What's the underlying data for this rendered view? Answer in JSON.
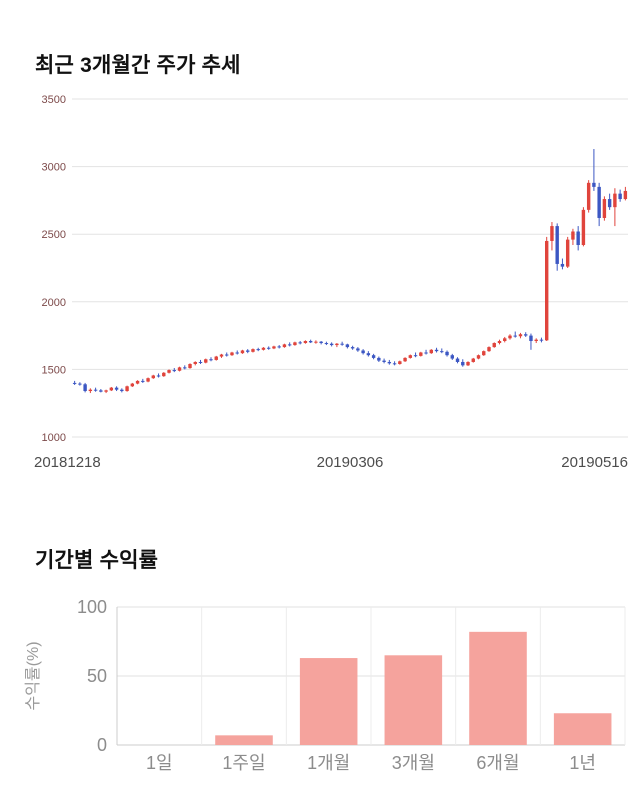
{
  "page": {
    "price_chart_title": "최근 3개월간 주가 추세",
    "return_chart_title": "기간별 수익률"
  },
  "chart_data": [
    {
      "type": "candlestick",
      "title": "최근 3개월간 주가 추세",
      "ylim": [
        1000,
        3500
      ],
      "yticks": [
        3500,
        3000,
        2500,
        2000,
        1500,
        1000
      ],
      "xtick_labels": [
        "20181218",
        "20190306",
        "20190516"
      ],
      "legend": "none",
      "grid": true,
      "colors": {
        "up": "#e0443c",
        "down": "#3c57c3",
        "grid": "#e3e3e3",
        "ytick_label": "#7d4a4a",
        "xtick_label": "#4d4d4d"
      },
      "candles_ohlc": [
        [
          1400,
          1415,
          1385,
          1395
        ],
        [
          1395,
          1405,
          1380,
          1390
        ],
        [
          1390,
          1400,
          1330,
          1340
        ],
        [
          1340,
          1360,
          1325,
          1350
        ],
        [
          1350,
          1365,
          1335,
          1345
        ],
        [
          1345,
          1355,
          1330,
          1335
        ],
        [
          1335,
          1350,
          1325,
          1345
        ],
        [
          1345,
          1370,
          1340,
          1365
        ],
        [
          1365,
          1375,
          1340,
          1350
        ],
        [
          1350,
          1360,
          1330,
          1340
        ],
        [
          1340,
          1380,
          1335,
          1375
        ],
        [
          1375,
          1400,
          1370,
          1395
        ],
        [
          1395,
          1420,
          1390,
          1415
        ],
        [
          1415,
          1430,
          1400,
          1410
        ],
        [
          1410,
          1440,
          1405,
          1435
        ],
        [
          1435,
          1460,
          1430,
          1455
        ],
        [
          1455,
          1470,
          1440,
          1450
        ],
        [
          1450,
          1480,
          1445,
          1475
        ],
        [
          1475,
          1500,
          1470,
          1495
        ],
        [
          1495,
          1510,
          1480,
          1490
        ],
        [
          1490,
          1520,
          1485,
          1515
        ],
        [
          1515,
          1530,
          1500,
          1510
        ],
        [
          1510,
          1545,
          1505,
          1540
        ],
        [
          1540,
          1560,
          1530,
          1555
        ],
        [
          1555,
          1570,
          1540,
          1550
        ],
        [
          1550,
          1580,
          1545,
          1575
        ],
        [
          1575,
          1590,
          1560,
          1570
        ],
        [
          1570,
          1600,
          1565,
          1595
        ],
        [
          1595,
          1615,
          1585,
          1610
        ],
        [
          1610,
          1625,
          1595,
          1605
        ],
        [
          1605,
          1630,
          1600,
          1625
        ],
        [
          1625,
          1640,
          1610,
          1620
        ],
        [
          1620,
          1645,
          1615,
          1640
        ],
        [
          1640,
          1650,
          1620,
          1630
        ],
        [
          1630,
          1655,
          1625,
          1650
        ],
        [
          1650,
          1660,
          1635,
          1645
        ],
        [
          1645,
          1665,
          1640,
          1660
        ],
        [
          1660,
          1670,
          1645,
          1655
        ],
        [
          1655,
          1675,
          1650,
          1670
        ],
        [
          1670,
          1680,
          1655,
          1665
        ],
        [
          1665,
          1690,
          1660,
          1685
        ],
        [
          1685,
          1700,
          1670,
          1680
        ],
        [
          1680,
          1705,
          1675,
          1700
        ],
        [
          1700,
          1710,
          1685,
          1695
        ],
        [
          1695,
          1715,
          1690,
          1710
        ],
        [
          1710,
          1720,
          1695,
          1700
        ],
        [
          1700,
          1715,
          1690,
          1705
        ],
        [
          1705,
          1710,
          1685,
          1695
        ],
        [
          1695,
          1705,
          1680,
          1690
        ],
        [
          1690,
          1700,
          1670,
          1680
        ],
        [
          1680,
          1695,
          1665,
          1690
        ],
        [
          1690,
          1705,
          1675,
          1685
        ],
        [
          1685,
          1690,
          1655,
          1665
        ],
        [
          1665,
          1675,
          1645,
          1655
        ],
        [
          1655,
          1665,
          1630,
          1640
        ],
        [
          1640,
          1650,
          1610,
          1620
        ],
        [
          1620,
          1635,
          1595,
          1605
        ],
        [
          1605,
          1615,
          1575,
          1585
        ],
        [
          1585,
          1595,
          1555,
          1565
        ],
        [
          1565,
          1580,
          1545,
          1555
        ],
        [
          1555,
          1570,
          1535,
          1545
        ],
        [
          1545,
          1560,
          1530,
          1540
        ],
        [
          1540,
          1565,
          1535,
          1560
        ],
        [
          1560,
          1590,
          1555,
          1585
        ],
        [
          1585,
          1610,
          1580,
          1605
        ],
        [
          1605,
          1625,
          1590,
          1600
        ],
        [
          1600,
          1630,
          1595,
          1625
        ],
        [
          1625,
          1645,
          1610,
          1620
        ],
        [
          1620,
          1650,
          1615,
          1645
        ],
        [
          1645,
          1660,
          1625,
          1635
        ],
        [
          1635,
          1655,
          1620,
          1630
        ],
        [
          1630,
          1640,
          1595,
          1605
        ],
        [
          1605,
          1615,
          1570,
          1580
        ],
        [
          1580,
          1590,
          1545,
          1555
        ],
        [
          1555,
          1575,
          1520,
          1530
        ],
        [
          1530,
          1560,
          1525,
          1555
        ],
        [
          1555,
          1585,
          1550,
          1580
        ],
        [
          1580,
          1610,
          1575,
          1605
        ],
        [
          1605,
          1640,
          1600,
          1635
        ],
        [
          1635,
          1670,
          1630,
          1665
        ],
        [
          1665,
          1700,
          1660,
          1695
        ],
        [
          1695,
          1720,
          1685,
          1710
        ],
        [
          1710,
          1740,
          1700,
          1730
        ],
        [
          1730,
          1760,
          1720,
          1750
        ],
        [
          1750,
          1780,
          1735,
          1745
        ],
        [
          1745,
          1770,
          1730,
          1760
        ],
        [
          1760,
          1775,
          1740,
          1750
        ],
        [
          1750,
          1765,
          1645,
          1710
        ],
        [
          1710,
          1730,
          1695,
          1720
        ],
        [
          1720,
          1735,
          1700,
          1715
        ],
        [
          1715,
          2480,
          1710,
          2450
        ],
        [
          2450,
          2590,
          2380,
          2560
        ],
        [
          2560,
          2580,
          2230,
          2280
        ],
        [
          2280,
          2320,
          2240,
          2260
        ],
        [
          2260,
          2480,
          2250,
          2460
        ],
        [
          2460,
          2540,
          2420,
          2520
        ],
        [
          2520,
          2560,
          2380,
          2420
        ],
        [
          2420,
          2700,
          2410,
          2680
        ],
        [
          2680,
          2900,
          2660,
          2880
        ],
        [
          2880,
          3130,
          2820,
          2850
        ],
        [
          2850,
          2880,
          2560,
          2620
        ],
        [
          2620,
          2780,
          2600,
          2760
        ],
        [
          2760,
          2800,
          2680,
          2700
        ],
        [
          2700,
          2840,
          2560,
          2800
        ],
        [
          2800,
          2830,
          2740,
          2760
        ],
        [
          2760,
          2850,
          2750,
          2820
        ]
      ]
    },
    {
      "type": "bar",
      "title": "기간별 수익률",
      "ylabel": "수익률(%)",
      "categories": [
        "1일",
        "1주일",
        "1개월",
        "3개월",
        "6개월",
        "1년"
      ],
      "values": [
        0,
        7,
        63,
        65,
        82,
        23
      ],
      "ylim": [
        0,
        100
      ],
      "yticks": [
        0,
        50,
        100
      ],
      "grid": true,
      "legend": "none",
      "colors": {
        "bar": "#f5a39d",
        "grid": "#e0e0e0",
        "vgrid": "#ececec",
        "axis_line": "#cccccc",
        "tick_label": "#8c8c8c",
        "ylabel": "#9a9a9a"
      }
    }
  ]
}
